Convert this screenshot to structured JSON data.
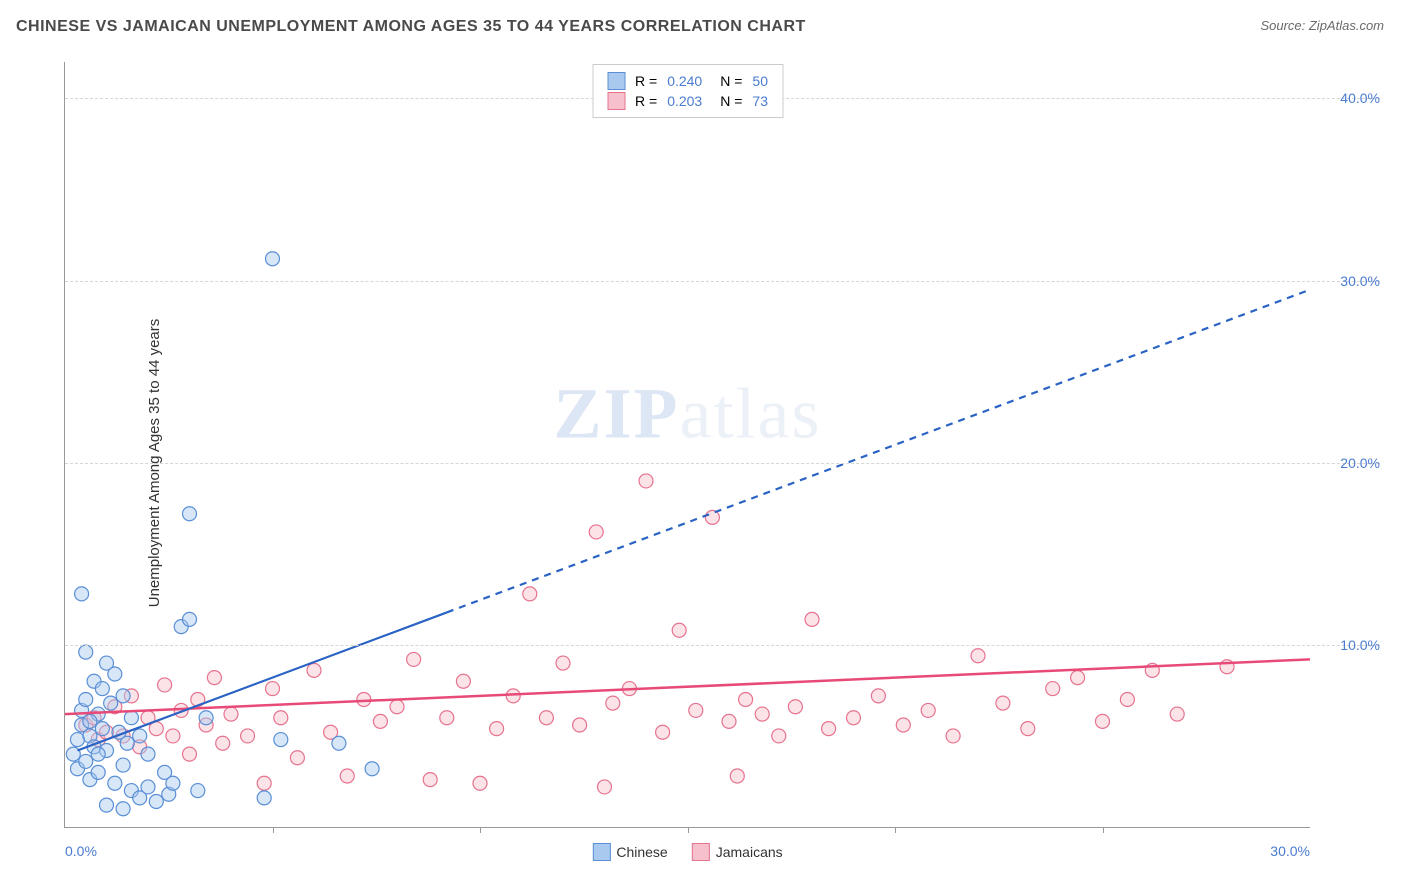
{
  "header": {
    "title": "CHINESE VS JAMAICAN UNEMPLOYMENT AMONG AGES 35 TO 44 YEARS CORRELATION CHART",
    "source": "Source: ZipAtlas.com"
  },
  "chart": {
    "type": "scatter",
    "ylabel": "Unemployment Among Ages 35 to 44 years",
    "watermark_bold": "ZIP",
    "watermark_rest": "atlas",
    "xlim": [
      0,
      30
    ],
    "ylim": [
      0,
      42
    ],
    "ytick_step": 10,
    "xtick_step": 5,
    "yticks": [
      {
        "v": 10,
        "label": "10.0%"
      },
      {
        "v": 20,
        "label": "20.0%"
      },
      {
        "v": 30,
        "label": "30.0%"
      },
      {
        "v": 40,
        "label": "40.0%"
      }
    ],
    "xticks_labels": [
      {
        "v": 0,
        "label": "0.0%"
      },
      {
        "v": 30,
        "label": "30.0%"
      }
    ],
    "xticks_marks": [
      5,
      10,
      15,
      20,
      25
    ],
    "background_color": "#ffffff",
    "grid_color": "#d6d6d6",
    "axis_color": "#999999",
    "tick_label_color": "#4a7bd0",
    "marker_radius": 7,
    "marker_opacity": 0.45,
    "series": {
      "chinese": {
        "label": "Chinese",
        "fill": "#a9c9ef",
        "stroke": "#5a8fd6",
        "R": "0.240",
        "N": "50",
        "trend": {
          "x1": 0.3,
          "y1": 4.2,
          "x2": 30,
          "y2": 29.5,
          "solid_until_x": 9.2,
          "color": "#2a63c4",
          "width": 2.2,
          "dash": "7,6"
        },
        "points": [
          [
            0.2,
            4.0
          ],
          [
            0.3,
            4.8
          ],
          [
            0.3,
            3.2
          ],
          [
            0.4,
            5.6
          ],
          [
            0.4,
            6.4
          ],
          [
            0.5,
            3.6
          ],
          [
            0.5,
            7.0
          ],
          [
            0.6,
            5.0
          ],
          [
            0.6,
            2.6
          ],
          [
            0.7,
            4.4
          ],
          [
            0.7,
            8.0
          ],
          [
            0.8,
            6.2
          ],
          [
            0.8,
            3.0
          ],
          [
            0.9,
            7.6
          ],
          [
            0.9,
            5.4
          ],
          [
            1.0,
            9.0
          ],
          [
            1.0,
            4.2
          ],
          [
            1.1,
            6.8
          ],
          [
            1.2,
            2.4
          ],
          [
            1.2,
            8.4
          ],
          [
            1.3,
            5.2
          ],
          [
            1.4,
            3.4
          ],
          [
            1.4,
            7.2
          ],
          [
            1.5,
            4.6
          ],
          [
            1.6,
            2.0
          ],
          [
            1.6,
            6.0
          ],
          [
            1.8,
            1.6
          ],
          [
            1.8,
            5.0
          ],
          [
            2.0,
            2.2
          ],
          [
            2.0,
            4.0
          ],
          [
            2.2,
            1.4
          ],
          [
            2.4,
            3.0
          ],
          [
            2.5,
            1.8
          ],
          [
            2.6,
            2.4
          ],
          [
            2.8,
            11.0
          ],
          [
            3.0,
            11.4
          ],
          [
            3.0,
            17.2
          ],
          [
            3.2,
            2.0
          ],
          [
            3.4,
            6.0
          ],
          [
            4.8,
            1.6
          ],
          [
            5.0,
            31.2
          ],
          [
            5.2,
            4.8
          ],
          [
            6.6,
            4.6
          ],
          [
            7.4,
            3.2
          ],
          [
            0.4,
            12.8
          ],
          [
            0.5,
            9.6
          ],
          [
            1.0,
            1.2
          ],
          [
            1.4,
            1.0
          ],
          [
            0.6,
            5.8
          ],
          [
            0.8,
            4.0
          ]
        ]
      },
      "jamaicans": {
        "label": "Jamaicans",
        "fill": "#f6c1cd",
        "stroke": "#e6738e",
        "R": "0.203",
        "N": "73",
        "trend": {
          "x1": 0,
          "y1": 6.2,
          "x2": 30,
          "y2": 9.2,
          "color": "#e84a78",
          "width": 2.5
        },
        "points": [
          [
            0.5,
            5.6
          ],
          [
            0.7,
            6.0
          ],
          [
            0.8,
            4.8
          ],
          [
            1.0,
            5.2
          ],
          [
            1.2,
            6.6
          ],
          [
            1.4,
            5.0
          ],
          [
            1.6,
            7.2
          ],
          [
            1.8,
            4.4
          ],
          [
            2.0,
            6.0
          ],
          [
            2.2,
            5.4
          ],
          [
            2.4,
            7.8
          ],
          [
            2.6,
            5.0
          ],
          [
            2.8,
            6.4
          ],
          [
            3.0,
            4.0
          ],
          [
            3.2,
            7.0
          ],
          [
            3.4,
            5.6
          ],
          [
            3.6,
            8.2
          ],
          [
            3.8,
            4.6
          ],
          [
            4.0,
            6.2
          ],
          [
            4.4,
            5.0
          ],
          [
            4.8,
            2.4
          ],
          [
            5.0,
            7.6
          ],
          [
            5.2,
            6.0
          ],
          [
            5.6,
            3.8
          ],
          [
            6.0,
            8.6
          ],
          [
            6.4,
            5.2
          ],
          [
            6.8,
            2.8
          ],
          [
            7.2,
            7.0
          ],
          [
            7.6,
            5.8
          ],
          [
            8.0,
            6.6
          ],
          [
            8.4,
            9.2
          ],
          [
            8.8,
            2.6
          ],
          [
            9.2,
            6.0
          ],
          [
            9.6,
            8.0
          ],
          [
            10.0,
            2.4
          ],
          [
            10.4,
            5.4
          ],
          [
            10.8,
            7.2
          ],
          [
            11.2,
            12.8
          ],
          [
            11.6,
            6.0
          ],
          [
            12.0,
            9.0
          ],
          [
            12.4,
            5.6
          ],
          [
            12.8,
            16.2
          ],
          [
            13.2,
            6.8
          ],
          [
            13.6,
            7.6
          ],
          [
            14.0,
            19.0
          ],
          [
            14.4,
            5.2
          ],
          [
            14.8,
            10.8
          ],
          [
            15.2,
            6.4
          ],
          [
            15.6,
            17.0
          ],
          [
            16.0,
            5.8
          ],
          [
            16.4,
            7.0
          ],
          [
            16.8,
            6.2
          ],
          [
            17.2,
            5.0
          ],
          [
            17.6,
            6.6
          ],
          [
            18.0,
            11.4
          ],
          [
            18.4,
            5.4
          ],
          [
            19.0,
            6.0
          ],
          [
            19.6,
            7.2
          ],
          [
            20.2,
            5.6
          ],
          [
            20.8,
            6.4
          ],
          [
            21.4,
            5.0
          ],
          [
            22.0,
            9.4
          ],
          [
            22.6,
            6.8
          ],
          [
            23.2,
            5.4
          ],
          [
            23.8,
            7.6
          ],
          [
            24.4,
            8.2
          ],
          [
            25.0,
            5.8
          ],
          [
            25.6,
            7.0
          ],
          [
            26.2,
            8.6
          ],
          [
            26.8,
            6.2
          ],
          [
            28.0,
            8.8
          ],
          [
            16.2,
            2.8
          ],
          [
            13.0,
            2.2
          ]
        ]
      }
    },
    "legend_top": {
      "r_label": "R =",
      "n_label": "N ="
    },
    "legend_bottom": [
      "chinese",
      "jamaicans"
    ]
  }
}
